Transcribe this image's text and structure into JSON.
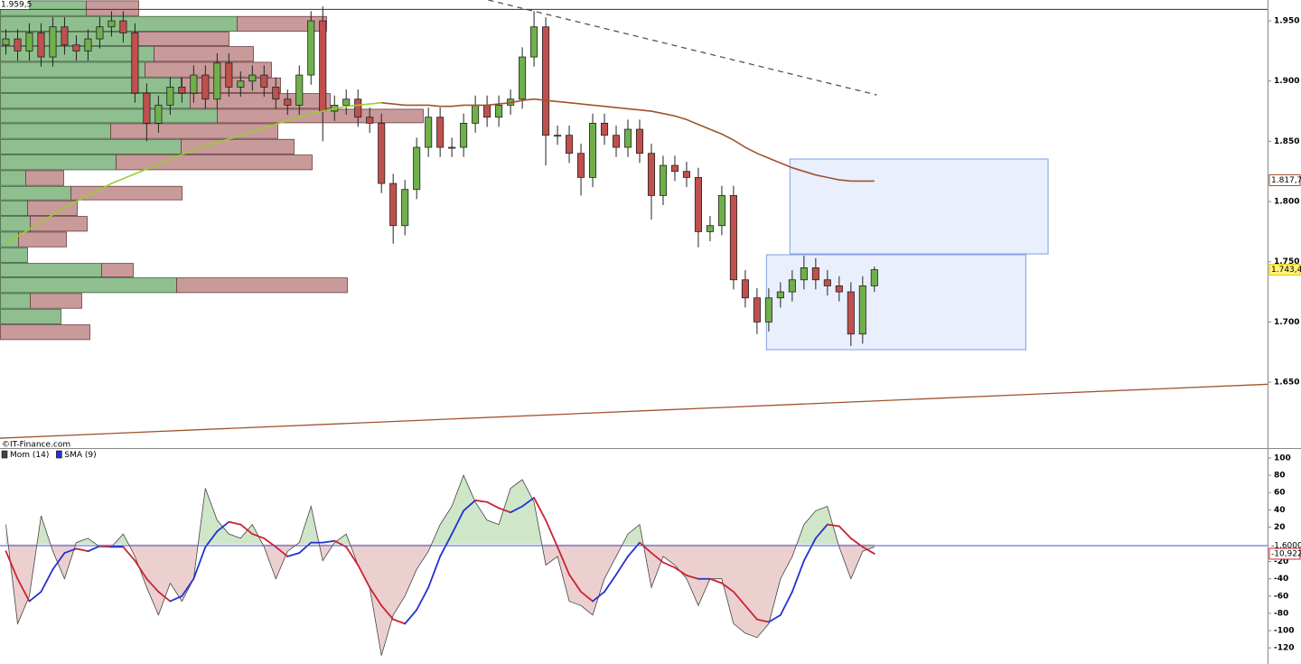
{
  "chart_data": [
    {
      "type": "candlestick",
      "source": "©IT-Finance.com",
      "xlim": [
        -0.5,
        107.5
      ],
      "ylim": [
        1.5953,
        1.9673
      ],
      "yticks": [
        {
          "value": 1.65,
          "label": "1.650"
        },
        {
          "value": 1.7,
          "label": "1.700"
        },
        {
          "value": 1.75,
          "label": "1.750"
        },
        {
          "value": 1.8,
          "label": "1.800"
        },
        {
          "value": 1.85,
          "label": "1.850"
        },
        {
          "value": 1.9,
          "label": "1.900"
        },
        {
          "value": 1.95,
          "label": "1.950"
        }
      ],
      "up_color": "#6fb04a",
      "down_color": "#c0504d",
      "open": [
        1.93,
        1.935,
        1.925,
        1.94,
        1.92,
        1.945,
        1.93,
        1.925,
        1.935,
        1.945,
        1.95,
        1.94,
        1.89,
        1.865,
        1.88,
        1.895,
        1.89,
        1.905,
        1.885,
        1.915,
        1.895,
        1.9,
        1.905,
        1.895,
        1.885,
        1.88,
        1.905,
        1.95,
        1.875,
        1.88,
        1.885,
        1.87,
        1.865,
        1.815,
        1.78,
        1.81,
        1.845,
        1.87,
        1.845,
        1.845,
        1.865,
        1.88,
        1.87,
        1.88,
        1.885,
        1.92,
        1.945,
        1.855,
        1.855,
        1.84,
        1.82,
        1.865,
        1.855,
        1.845,
        1.86,
        1.84,
        1.805,
        1.83,
        1.825,
        1.82,
        1.775,
        1.78,
        1.805,
        1.735,
        1.72,
        1.7,
        1.72,
        1.725,
        1.735,
        1.745,
        1.735,
        1.73,
        1.725,
        1.69,
        1.73
      ],
      "high": [
        1.943,
        1.943,
        1.948,
        1.948,
        1.953,
        1.953,
        1.938,
        1.943,
        1.953,
        1.958,
        1.958,
        1.948,
        1.898,
        1.888,
        1.903,
        1.903,
        1.913,
        1.913,
        1.923,
        1.923,
        1.908,
        1.913,
        1.913,
        1.903,
        1.893,
        1.913,
        1.958,
        1.962,
        1.888,
        1.893,
        1.893,
        1.878,
        1.873,
        1.823,
        1.818,
        1.853,
        1.878,
        1.878,
        1.853,
        1.873,
        1.888,
        1.888,
        1.888,
        1.893,
        1.928,
        1.958,
        1.953,
        1.863,
        1.863,
        1.848,
        1.873,
        1.873,
        1.863,
        1.868,
        1.868,
        1.848,
        1.838,
        1.838,
        1.833,
        1.828,
        1.788,
        1.813,
        1.813,
        1.743,
        1.728,
        1.728,
        1.733,
        1.743,
        1.755,
        1.753,
        1.743,
        1.738,
        1.733,
        1.738,
        1.746
      ],
      "low": [
        1.922,
        1.917,
        1.917,
        1.912,
        1.912,
        1.922,
        1.917,
        1.917,
        1.927,
        1.937,
        1.932,
        1.882,
        1.85,
        1.857,
        1.872,
        1.882,
        1.882,
        1.877,
        1.877,
        1.887,
        1.887,
        1.892,
        1.887,
        1.877,
        1.872,
        1.872,
        1.897,
        1.85,
        1.867,
        1.872,
        1.862,
        1.857,
        1.807,
        1.765,
        1.772,
        1.802,
        1.837,
        1.837,
        1.837,
        1.837,
        1.857,
        1.862,
        1.862,
        1.872,
        1.877,
        1.912,
        1.83,
        1.847,
        1.832,
        1.805,
        1.812,
        1.847,
        1.837,
        1.837,
        1.832,
        1.785,
        1.797,
        1.817,
        1.812,
        1.762,
        1.767,
        1.772,
        1.727,
        1.712,
        1.69,
        1.692,
        1.712,
        1.717,
        1.727,
        1.727,
        1.722,
        1.717,
        1.68,
        1.682,
        1.725
      ],
      "close": [
        1.935,
        1.925,
        1.94,
        1.92,
        1.945,
        1.93,
        1.925,
        1.935,
        1.945,
        1.95,
        1.94,
        1.89,
        1.865,
        1.88,
        1.895,
        1.89,
        1.905,
        1.885,
        1.915,
        1.895,
        1.9,
        1.905,
        1.895,
        1.885,
        1.88,
        1.905,
        1.95,
        1.875,
        1.88,
        1.885,
        1.87,
        1.865,
        1.815,
        1.78,
        1.81,
        1.845,
        1.87,
        1.845,
        1.845,
        1.865,
        1.88,
        1.87,
        1.88,
        1.885,
        1.92,
        1.945,
        1.855,
        1.855,
        1.84,
        1.82,
        1.865,
        1.855,
        1.845,
        1.86,
        1.84,
        1.805,
        1.83,
        1.825,
        1.82,
        1.775,
        1.78,
        1.805,
        1.735,
        1.72,
        1.7,
        1.72,
        1.725,
        1.735,
        1.745,
        1.735,
        1.73,
        1.725,
        1.69,
        1.73,
        1.7434
      ],
      "series": [
        {
          "color": "#9acd32",
          "values": [
            1.765,
            1.771,
            1.777,
            1.783,
            1.789,
            1.795,
            1.8,
            1.805,
            1.81,
            1.815,
            1.819,
            1.823,
            1.827,
            1.831,
            1.835,
            1.839,
            1.843,
            1.846,
            1.849,
            1.852,
            1.855,
            1.858,
            1.861,
            1.864,
            1.867,
            1.87,
            1.873,
            1.875,
            1.877,
            1.879,
            1.88,
            1.881,
            1.882,
            null,
            null,
            null,
            null,
            null,
            null,
            null,
            null,
            null,
            null,
            null,
            null,
            null,
            null,
            null,
            null,
            null,
            null,
            null,
            null,
            null,
            null,
            null,
            null,
            null,
            null,
            null,
            null,
            null,
            null,
            null,
            null,
            null,
            null,
            null,
            null,
            null,
            null,
            null,
            null,
            null,
            null
          ]
        },
        {
          "color": "#a0522d",
          "values": [
            null,
            null,
            null,
            null,
            null,
            null,
            null,
            null,
            null,
            null,
            null,
            null,
            null,
            null,
            null,
            null,
            null,
            null,
            null,
            null,
            null,
            null,
            null,
            null,
            null,
            null,
            null,
            null,
            null,
            null,
            null,
            null,
            1.882,
            1.881,
            1.88,
            1.88,
            1.88,
            1.879,
            1.879,
            1.88,
            1.88,
            1.88,
            1.881,
            1.882,
            1.884,
            1.885,
            1.884,
            1.883,
            1.882,
            1.881,
            1.88,
            1.879,
            1.878,
            1.877,
            1.876,
            1.875,
            1.873,
            1.871,
            1.868,
            1.864,
            1.86,
            1.856,
            1.851,
            1.845,
            1.84,
            1.836,
            1.832,
            1.828,
            1.825,
            1.822,
            1.82,
            1.818,
            1.817,
            1.817,
            1.817
          ]
        }
      ],
      "profile": {
        "bins": [
          1.967,
          1.954,
          1.941,
          1.929,
          1.916,
          1.903,
          1.89,
          1.877,
          1.865,
          1.852,
          1.839,
          1.826,
          1.813,
          1.801,
          1.788,
          1.775,
          1.762,
          1.749,
          1.737,
          1.724,
          1.711,
          1.698,
          1.685
        ],
        "up": [
          95,
          262,
          150,
          170,
          160,
          200,
          210,
          240,
          122,
          200,
          128,
          28,
          78,
          30,
          33,
          20,
          30,
          112,
          195,
          33,
          67,
          0
        ],
        "down": [
          58,
          99,
          103,
          110,
          140,
          110,
          155,
          228,
          185,
          125,
          217,
          42,
          123,
          55,
          63,
          53,
          0,
          35,
          189,
          57,
          0,
          99
        ],
        "up_color": "#8fbf8f",
        "down_color": "#c99a9a"
      },
      "trendlines": [
        {
          "from": [
            41.1,
            1.9673
          ],
          "to": [
            74.2,
            1.8885
          ],
          "color": "#555555",
          "dashed": true
        },
        {
          "from": [
            -0.5,
            1.6035
          ],
          "to": [
            107.5,
            1.6483
          ],
          "color": "#a0522d",
          "dashed": false
        }
      ],
      "zones": [
        {
          "from": [
            64.8,
            1.7558
          ],
          "to": [
            86.9,
            1.677
          ],
          "color": "#e3eafc"
        },
        {
          "from": [
            66.8,
            1.8353
          ],
          "to": [
            88.8,
            1.7565
          ],
          "color": "#e3eafc"
        }
      ],
      "hlines": [
        {
          "value": 1.9595,
          "label": "1.959,5",
          "color": "#333333"
        }
      ],
      "price_labels": [
        {
          "value": 1.8177,
          "label": "1.817,7",
          "color": "#a0522d"
        },
        {
          "value": 1.7434,
          "label": "1.743,4",
          "color": "#e8c800"
        }
      ]
    },
    {
      "type": "line",
      "xlim": [
        -0.5,
        107.5
      ],
      "ylim": [
        -138.7,
        110.5
      ],
      "yticks": [
        100,
        80,
        60,
        40,
        20,
        -20,
        -40,
        -60,
        -80,
        -100,
        -120
      ],
      "series": [
        {
          "name": "Mom (14)",
          "color": "#444444",
          "fill_up": "#cfe6c9",
          "fill_down": "#ecd0d0",
          "values": [
            23,
            -92,
            -60,
            33,
            -8,
            -40,
            2,
            7,
            -3,
            -3,
            12,
            -14,
            -50,
            -82,
            -45,
            -66,
            -40,
            65,
            28,
            12,
            7,
            23,
            -3,
            -40,
            -8,
            2,
            44,
            -19,
            2,
            12,
            -24,
            -50,
            -129,
            -82,
            -60,
            -29,
            -8,
            23,
            44,
            80,
            49,
            28,
            23,
            65,
            75,
            49,
            -24,
            -14,
            -66,
            -71,
            -82,
            -40,
            -14,
            12,
            23,
            -50,
            -14,
            -24,
            -40,
            -71,
            -40,
            -40,
            -92,
            -103,
            -108,
            -92,
            -40,
            -14,
            23,
            39,
            44,
            -3,
            -40,
            -8,
            -3
          ]
        },
        {
          "name": "SMA (9)",
          "color": "#2233cc",
          "down_color": "#cc2233",
          "values": [
            -8,
            -40,
            -66,
            -55,
            -29,
            -10,
            -5,
            -8,
            -2,
            -3,
            -3,
            -19,
            -40,
            -55,
            -66,
            -60,
            -40,
            -3,
            15,
            26,
            23,
            12,
            7,
            -3,
            -14,
            -10,
            2,
            2,
            4,
            -3,
            -24,
            -50,
            -71,
            -87,
            -92,
            -76,
            -50,
            -14,
            12,
            39,
            51,
            49,
            42,
            37,
            44,
            54,
            28,
            -3,
            -35,
            -55,
            -66,
            -55,
            -35,
            -14,
            2,
            -10,
            -21,
            -27,
            -36,
            -40,
            -40,
            -45,
            -55,
            -71,
            -87,
            -90,
            -82,
            -55,
            -19,
            7,
            23,
            21,
            7,
            -3,
            -10.922
          ]
        }
      ],
      "hlines": [
        {
          "value": -1.6,
          "label": "-1,6000",
          "color": "#4455cc"
        }
      ],
      "price_labels": [
        {
          "value": -10.922,
          "label": "-10,922",
          "color": "#cc2233"
        }
      ]
    }
  ]
}
